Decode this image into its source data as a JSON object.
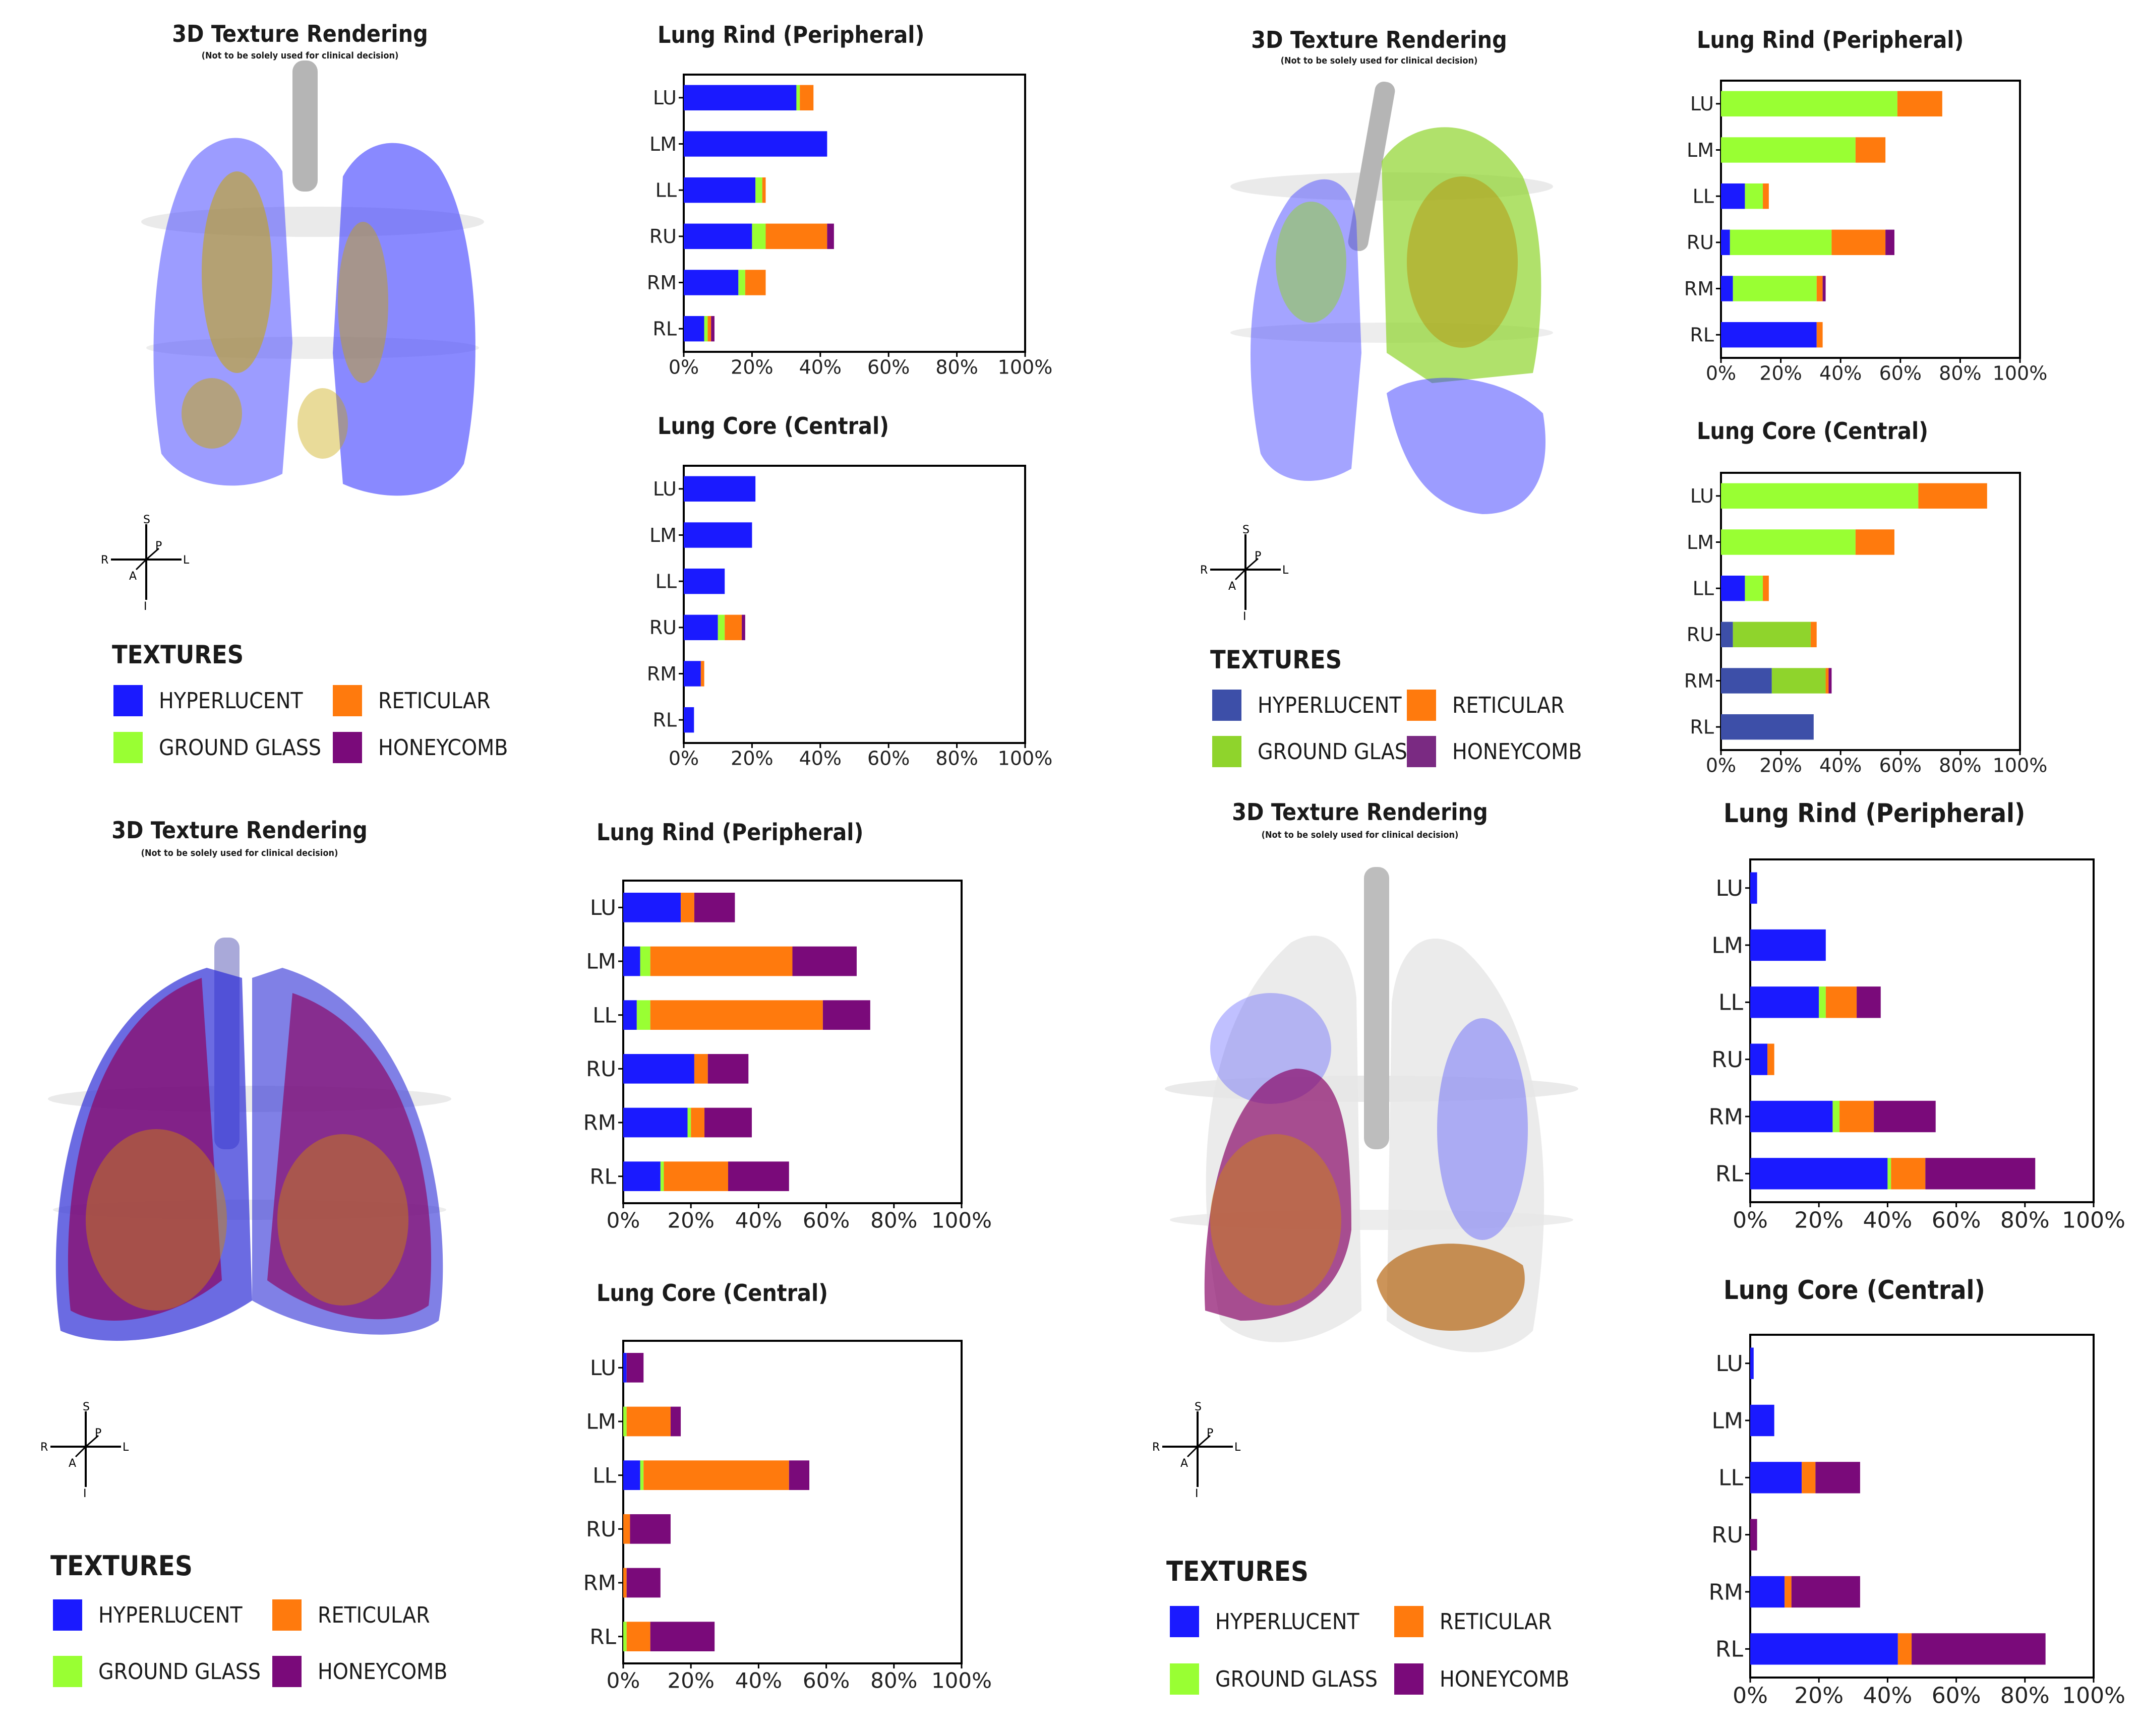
{
  "colors": {
    "hyperlucent": "#1a1aff",
    "ground_glass": "#99ff33",
    "reticular": "#ff7a0d",
    "honeycomb": "#7a0a7a",
    "hyperlucent_alt": "#3d4fa8"
  },
  "panels": [
    {
      "render": {
        "title": "3D Texture Rendering",
        "subtitle": "(Not to be solely used for clinical decision)"
      },
      "compass": {
        "s": "S",
        "i": "I",
        "r": "R",
        "l": "L",
        "a": "A",
        "p": "P"
      },
      "legend": {
        "title": "TEXTURES",
        "items": [
          {
            "label": "HYPERLUCENT",
            "color": "#1a1aff"
          },
          {
            "label": "RETICULAR",
            "color": "#ff7a0d"
          },
          {
            "label": "GROUND GLASS",
            "color": "#99ff33"
          },
          {
            "label": "HONEYCOMB",
            "color": "#7a0a7a"
          }
        ]
      }
    },
    {
      "render": {
        "title": "3D Texture Rendering",
        "subtitle": "(Not to be solely used for clinical decision)"
      },
      "compass": {
        "s": "S",
        "i": "I",
        "r": "R",
        "l": "L",
        "a": "A",
        "p": "P"
      },
      "legend": {
        "title": "TEXTURES",
        "items": [
          {
            "label": "HYPERLUCENT",
            "color": "#3d4fa8"
          },
          {
            "label": "RETICULAR",
            "color": "#ff7a0d"
          },
          {
            "label": "GROUND GLASS",
            "color": "#8fd42c"
          },
          {
            "label": "HONEYCOMB",
            "color": "#7a2a82"
          }
        ]
      }
    },
    {
      "render": {
        "title": "3D Texture Rendering",
        "subtitle": "(Not to be solely used for clinical decision)"
      },
      "compass": {
        "s": "S",
        "i": "I",
        "r": "R",
        "l": "L",
        "a": "A",
        "p": "P"
      },
      "legend": {
        "title": "TEXTURES",
        "items": [
          {
            "label": "HYPERLUCENT",
            "color": "#1a1aff"
          },
          {
            "label": "RETICULAR",
            "color": "#ff7a0d"
          },
          {
            "label": "GROUND GLASS",
            "color": "#99ff33"
          },
          {
            "label": "HONEYCOMB",
            "color": "#7a0a7a"
          }
        ]
      }
    },
    {
      "render": {
        "title": "3D Texture Rendering",
        "subtitle": "(Not to be solely used for clinical decision)"
      },
      "compass": {
        "s": "S",
        "i": "I",
        "r": "R",
        "l": "L",
        "a": "A",
        "p": "P"
      },
      "legend": {
        "title": "TEXTURES",
        "items": [
          {
            "label": "HYPERLUCENT",
            "color": "#1a1aff"
          },
          {
            "label": "RETICULAR",
            "color": "#ff7a0d"
          },
          {
            "label": "GROUND GLASS",
            "color": "#99ff33"
          },
          {
            "label": "HONEYCOMB",
            "color": "#7a0a7a"
          }
        ]
      }
    }
  ],
  "chart_data": [
    {
      "type": "bar",
      "orientation": "horizontal",
      "stacked": true,
      "title": "Lung Rind (Peripheral)",
      "categories": [
        "LU",
        "LM",
        "LL",
        "RU",
        "RM",
        "RL"
      ],
      "xlim": [
        0,
        100
      ],
      "xticks": [
        "0%",
        "20%",
        "40%",
        "60%",
        "80%",
        "100%"
      ],
      "series": [
        {
          "name": "HYPERLUCENT",
          "color": "#1a1aff",
          "values": [
            33,
            42,
            21,
            20,
            16,
            6
          ]
        },
        {
          "name": "GROUND GLASS",
          "color": "#99ff33",
          "values": [
            1,
            0,
            2,
            4,
            2,
            1
          ]
        },
        {
          "name": "RETICULAR",
          "color": "#ff7a0d",
          "values": [
            4,
            0,
            1,
            18,
            6,
            1
          ]
        },
        {
          "name": "HONEYCOMB",
          "color": "#7a0a7a",
          "values": [
            0,
            0,
            0,
            2,
            0,
            1
          ]
        }
      ]
    },
    {
      "type": "bar",
      "orientation": "horizontal",
      "stacked": true,
      "title": "Lung Core (Central)",
      "categories": [
        "LU",
        "LM",
        "LL",
        "RU",
        "RM",
        "RL"
      ],
      "xlim": [
        0,
        100
      ],
      "xticks": [
        "0%",
        "20%",
        "40%",
        "60%",
        "80%",
        "100%"
      ],
      "series": [
        {
          "name": "HYPERLUCENT",
          "color": "#1a1aff",
          "values": [
            21,
            20,
            12,
            10,
            5,
            3
          ]
        },
        {
          "name": "GROUND GLASS",
          "color": "#99ff33",
          "values": [
            0,
            0,
            0,
            2,
            0,
            0
          ]
        },
        {
          "name": "RETICULAR",
          "color": "#ff7a0d",
          "values": [
            0,
            0,
            0,
            5,
            1,
            0
          ]
        },
        {
          "name": "HONEYCOMB",
          "color": "#7a0a7a",
          "values": [
            0,
            0,
            0,
            1,
            0,
            0
          ]
        }
      ]
    },
    {
      "type": "bar",
      "orientation": "horizontal",
      "stacked": true,
      "title": "Lung Rind (Peripheral)",
      "categories": [
        "LU",
        "LM",
        "LL",
        "RU",
        "RM",
        "RL"
      ],
      "xlim": [
        0,
        100
      ],
      "xticks": [
        "0%",
        "20%",
        "40%",
        "60%",
        "80%",
        "100%"
      ],
      "series": [
        {
          "name": "HYPERLUCENT",
          "color": "#1a1aff",
          "values": [
            0,
            0,
            8,
            3,
            4,
            32
          ]
        },
        {
          "name": "GROUND GLASS",
          "color": "#99ff33",
          "values": [
            59,
            45,
            6,
            34,
            28,
            0
          ]
        },
        {
          "name": "RETICULAR",
          "color": "#ff7a0d",
          "values": [
            15,
            10,
            2,
            18,
            2,
            2
          ]
        },
        {
          "name": "HONEYCOMB",
          "color": "#7a0a7a",
          "values": [
            0,
            0,
            0,
            3,
            1,
            0
          ]
        }
      ]
    },
    {
      "type": "bar",
      "orientation": "horizontal",
      "stacked": true,
      "title": "Lung Core (Central)",
      "categories": [
        "LU",
        "LM",
        "LL",
        "RU",
        "RM",
        "RL"
      ],
      "xlim": [
        0,
        100
      ],
      "xticks": [
        "0%",
        "20%",
        "40%",
        "60%",
        "80%",
        "100%"
      ],
      "series": [
        {
          "name": "HYPERLUCENT",
          "color": "#1a1aff",
          "values": [
            0,
            0,
            8,
            0,
            0,
            0
          ]
        },
        {
          "name": "HYPERLUCENT (alt shade)",
          "color": "#3d4fa8",
          "values": [
            0,
            0,
            0,
            4,
            17,
            31
          ]
        },
        {
          "name": "GROUND GLASS",
          "color": "#99ff33",
          "values": [
            66,
            45,
            6,
            0,
            0,
            0
          ]
        },
        {
          "name": "GROUND GLASS (alt shade)",
          "color": "#8fd42c",
          "values": [
            0,
            0,
            0,
            26,
            18,
            0
          ]
        },
        {
          "name": "RETICULAR",
          "color": "#ff7a0d",
          "values": [
            23,
            13,
            2,
            2,
            1,
            0
          ]
        },
        {
          "name": "HONEYCOMB",
          "color": "#7a0a7a",
          "values": [
            0,
            0,
            0,
            0,
            1,
            0
          ]
        }
      ]
    },
    {
      "type": "bar",
      "orientation": "horizontal",
      "stacked": true,
      "title": "Lung Rind (Peripheral)",
      "categories": [
        "LU",
        "LM",
        "LL",
        "RU",
        "RM",
        "RL"
      ],
      "xlim": [
        0,
        100
      ],
      "xticks": [
        "0%",
        "20%",
        "40%",
        "60%",
        "80%",
        "100%"
      ],
      "series": [
        {
          "name": "HYPERLUCENT",
          "color": "#1a1aff",
          "values": [
            17,
            5,
            4,
            21,
            19,
            11
          ]
        },
        {
          "name": "GROUND GLASS",
          "color": "#99ff33",
          "values": [
            0,
            3,
            4,
            0,
            1,
            1
          ]
        },
        {
          "name": "RETICULAR",
          "color": "#ff7a0d",
          "values": [
            4,
            42,
            51,
            4,
            4,
            19
          ]
        },
        {
          "name": "HONEYCOMB",
          "color": "#7a0a7a",
          "values": [
            12,
            19,
            14,
            12,
            14,
            18
          ]
        }
      ]
    },
    {
      "type": "bar",
      "orientation": "horizontal",
      "stacked": true,
      "title": "Lung Core (Central)",
      "categories": [
        "LU",
        "LM",
        "LL",
        "RU",
        "RM",
        "RL"
      ],
      "xlim": [
        0,
        100
      ],
      "xticks": [
        "0%",
        "20%",
        "40%",
        "60%",
        "80%",
        "100%"
      ],
      "series": [
        {
          "name": "HYPERLUCENT",
          "color": "#1a1aff",
          "values": [
            1,
            0,
            5,
            0,
            0,
            0
          ]
        },
        {
          "name": "GROUND GLASS",
          "color": "#99ff33",
          "values": [
            0,
            1,
            1,
            0,
            0,
            1
          ]
        },
        {
          "name": "RETICULAR",
          "color": "#ff7a0d",
          "values": [
            0,
            13,
            43,
            2,
            1,
            7
          ]
        },
        {
          "name": "HONEYCOMB",
          "color": "#7a0a7a",
          "values": [
            5,
            3,
            6,
            12,
            10,
            19
          ]
        }
      ]
    },
    {
      "type": "bar",
      "orientation": "horizontal",
      "stacked": true,
      "title": "Lung Rind (Peripheral)",
      "categories": [
        "LU",
        "LM",
        "LL",
        "RU",
        "RM",
        "RL"
      ],
      "xlim": [
        0,
        100
      ],
      "xticks": [
        "0%",
        "20%",
        "40%",
        "60%",
        "80%",
        "100%"
      ],
      "series": [
        {
          "name": "HYPERLUCENT",
          "color": "#1a1aff",
          "values": [
            2,
            22,
            20,
            5,
            24,
            40
          ]
        },
        {
          "name": "GROUND GLASS",
          "color": "#99ff33",
          "values": [
            0,
            0,
            2,
            0,
            2,
            1
          ]
        },
        {
          "name": "RETICULAR",
          "color": "#ff7a0d",
          "values": [
            0,
            0,
            9,
            2,
            10,
            10
          ]
        },
        {
          "name": "HONEYCOMB",
          "color": "#7a0a7a",
          "values": [
            0,
            0,
            7,
            0,
            18,
            32
          ]
        }
      ]
    },
    {
      "type": "bar",
      "orientation": "horizontal",
      "stacked": true,
      "title": "Lung Core (Central)",
      "categories": [
        "LU",
        "LM",
        "LL",
        "RU",
        "RM",
        "RL"
      ],
      "xlim": [
        0,
        100
      ],
      "xticks": [
        "0%",
        "20%",
        "40%",
        "60%",
        "80%",
        "100%"
      ],
      "series": [
        {
          "name": "HYPERLUCENT",
          "color": "#1a1aff",
          "values": [
            1,
            7,
            15,
            0,
            10,
            43
          ]
        },
        {
          "name": "GROUND GLASS",
          "color": "#99ff33",
          "values": [
            0,
            0,
            0,
            0,
            0,
            0
          ]
        },
        {
          "name": "RETICULAR",
          "color": "#ff7a0d",
          "values": [
            0,
            0,
            4,
            0,
            2,
            4
          ]
        },
        {
          "name": "HONEYCOMB",
          "color": "#7a0a7a",
          "values": [
            0,
            0,
            13,
            2,
            20,
            39
          ]
        }
      ]
    }
  ]
}
